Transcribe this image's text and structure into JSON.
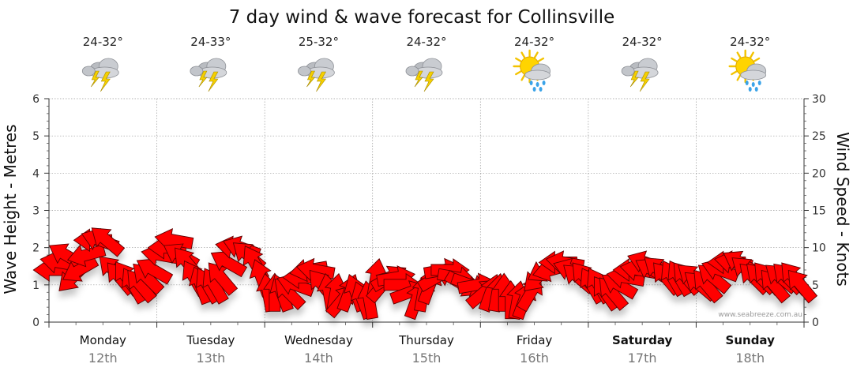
{
  "chart_data": {
    "type": "scatter",
    "title": "7 day wind & wave forecast for Collinsville",
    "ylabel_left": "Wave Height - Metres",
    "ylabel_right": "Wind Speed - Knots",
    "ylim_left": [
      0,
      6
    ],
    "ylim_right": [
      0,
      30
    ],
    "yticks_left": [
      "0",
      "1",
      "2",
      "3",
      "4",
      "5",
      "6"
    ],
    "yticks_right": [
      "0",
      "5",
      "10",
      "15",
      "20",
      "25",
      "30"
    ],
    "credit": "www.seabreeze.com.au",
    "days": [
      {
        "name": "Monday",
        "date": "12th",
        "temp": "24-32°",
        "icon": "storm-cloud-icon",
        "bold": false
      },
      {
        "name": "Tuesday",
        "date": "13th",
        "temp": "24-33°",
        "icon": "storm-cloud-icon",
        "bold": false
      },
      {
        "name": "Wednesday",
        "date": "14th",
        "temp": "25-32°",
        "icon": "storm-cloud-icon",
        "bold": false
      },
      {
        "name": "Thursday",
        "date": "15th",
        "temp": "24-32°",
        "icon": "storm-cloud-icon",
        "bold": false
      },
      {
        "name": "Friday",
        "date": "16th",
        "temp": "24-32°",
        "icon": "sun-rain-cloud-icon",
        "bold": false
      },
      {
        "name": "Saturday",
        "date": "17th",
        "temp": "24-32°",
        "icon": "storm-cloud-icon",
        "bold": true
      },
      {
        "name": "Sunday",
        "date": "18th",
        "temp": "24-32°",
        "icon": "sun-rain-cloud-icon",
        "bold": true
      }
    ],
    "wind_series": {
      "name": "Wind Speed",
      "color": "#ff0000",
      "hour_step": 3,
      "speed_knots": [
        7,
        8,
        9,
        6,
        7,
        9,
        11,
        11,
        11,
        7,
        6,
        6,
        5,
        5,
        6,
        7,
        9,
        10,
        11,
        9,
        8,
        6,
        5,
        5,
        5,
        6,
        8,
        10,
        10,
        9,
        8,
        6,
        4,
        4,
        4,
        4,
        5,
        6,
        7,
        7,
        5,
        4,
        4,
        3,
        4,
        4,
        3,
        3,
        6,
        5,
        6,
        6,
        5,
        4,
        3,
        4,
        5,
        6,
        7,
        7,
        6,
        5,
        5,
        5,
        4,
        4,
        4,
        4,
        3,
        3,
        3,
        4,
        6,
        7,
        7,
        8,
        8,
        7,
        6,
        6,
        5,
        5,
        4,
        4,
        5,
        6,
        7,
        7,
        8,
        7,
        7,
        6,
        6,
        6,
        6,
        6,
        5,
        5,
        6,
        7,
        8,
        8,
        8,
        7,
        6,
        6,
        6,
        5,
        6,
        6,
        6,
        5
      ],
      "direction_deg": [
        90,
        100,
        120,
        45,
        60,
        75,
        90,
        110,
        130,
        135,
        140,
        145,
        150,
        140,
        135,
        120,
        100,
        90,
        100,
        120,
        140,
        150,
        160,
        150,
        150,
        140,
        120,
        100,
        110,
        130,
        150,
        160,
        170,
        180,
        160,
        135,
        110,
        90,
        80,
        100,
        140,
        170,
        190,
        220,
        200,
        160,
        160,
        170,
        190,
        220,
        240,
        260,
        270,
        250,
        200,
        190,
        200,
        240,
        260,
        270,
        280,
        300,
        290,
        260,
        230,
        200,
        190,
        180,
        180,
        190,
        200,
        210,
        45,
        60,
        75,
        90,
        100,
        110,
        130,
        140,
        150,
        150,
        145,
        140,
        120,
        100,
        90,
        100,
        110,
        120,
        130,
        140,
        150,
        150,
        140,
        130,
        130,
        140,
        130,
        110,
        90,
        100,
        120,
        130,
        135,
        135,
        140,
        140,
        130,
        135,
        140,
        140
      ]
    }
  }
}
